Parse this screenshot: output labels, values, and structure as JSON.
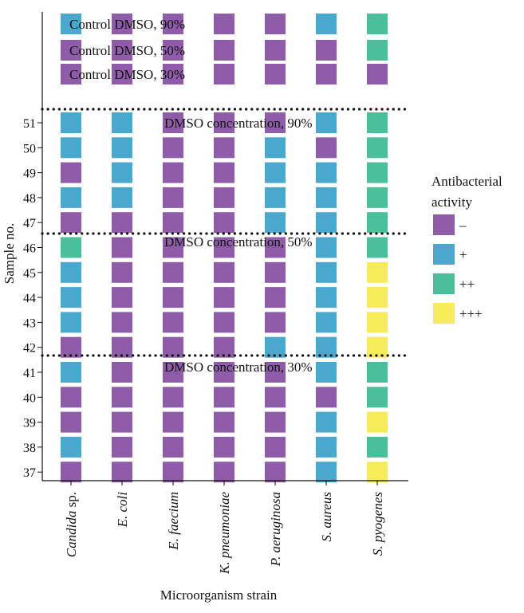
{
  "chart_data": {
    "type": "heatmap",
    "xlabel": "Microorganism strain",
    "ylabel": "Sample no.",
    "strains": [
      {
        "italic": "Candida",
        "roman": " sp."
      },
      {
        "italic": "E. coli",
        "roman": ""
      },
      {
        "italic": "E. faecium",
        "roman": ""
      },
      {
        "italic": "K. pneumoniae",
        "roman": ""
      },
      {
        "italic": "P. aeruginosa",
        "roman": ""
      },
      {
        "italic": "S. aureus",
        "roman": ""
      },
      {
        "italic": "S. pyogenes",
        "roman": ""
      }
    ],
    "levels": [
      {
        "label": "–",
        "color": "#8e5ca8"
      },
      {
        "label": "+",
        "color": "#4aa8cf"
      },
      {
        "label": "++",
        "color": "#4bbf99"
      },
      {
        "label": "+++",
        "color": "#f6ec5a"
      }
    ],
    "legend_title": [
      "Antibacterial",
      "activity"
    ],
    "controls": [
      {
        "label": "Control DMSO, 90%",
        "values": [
          1,
          0,
          0,
          0,
          0,
          1,
          2
        ]
      },
      {
        "label": "Control DMSO, 50%",
        "values": [
          0,
          0,
          0,
          0,
          0,
          0,
          2
        ]
      },
      {
        "label": "Control DMSO, 30%",
        "values": [
          0,
          0,
          0,
          0,
          0,
          0,
          0
        ]
      }
    ],
    "groups": [
      {
        "label": "DMSO concentration, 90%",
        "rows": [
          {
            "sample": "51",
            "values": [
              1,
              1,
              0,
              0,
              0,
              1,
              2
            ]
          },
          {
            "sample": "50",
            "values": [
              1,
              1,
              0,
              0,
              1,
              0,
              2
            ]
          },
          {
            "sample": "49",
            "values": [
              0,
              1,
              0,
              0,
              1,
              1,
              2
            ]
          },
          {
            "sample": "48",
            "values": [
              1,
              1,
              0,
              0,
              1,
              1,
              2
            ]
          },
          {
            "sample": "47",
            "values": [
              0,
              0,
              0,
              0,
              1,
              1,
              2
            ]
          }
        ]
      },
      {
        "label": "DMSO concentration, 50%",
        "rows": [
          {
            "sample": "46",
            "values": [
              2,
              0,
              0,
              0,
              0,
              1,
              2
            ]
          },
          {
            "sample": "45",
            "values": [
              1,
              0,
              0,
              0,
              0,
              1,
              3
            ]
          },
          {
            "sample": "44",
            "values": [
              1,
              0,
              0,
              0,
              0,
              1,
              3
            ]
          },
          {
            "sample": "43",
            "values": [
              1,
              0,
              0,
              0,
              0,
              1,
              3
            ]
          },
          {
            "sample": "42",
            "values": [
              0,
              0,
              0,
              0,
              1,
              1,
              3
            ]
          }
        ]
      },
      {
        "label": "DMSO concentration, 30%",
        "rows": [
          {
            "sample": "41",
            "values": [
              1,
              0,
              0,
              0,
              0,
              1,
              2
            ]
          },
          {
            "sample": "40",
            "values": [
              0,
              0,
              0,
              0,
              0,
              0,
              2
            ]
          },
          {
            "sample": "39",
            "values": [
              0,
              0,
              0,
              0,
              0,
              1,
              3
            ]
          },
          {
            "sample": "38",
            "values": [
              1,
              0,
              0,
              0,
              0,
              1,
              2
            ]
          },
          {
            "sample": "37",
            "values": [
              0,
              0,
              0,
              0,
              0,
              1,
              3
            ]
          }
        ]
      }
    ]
  }
}
